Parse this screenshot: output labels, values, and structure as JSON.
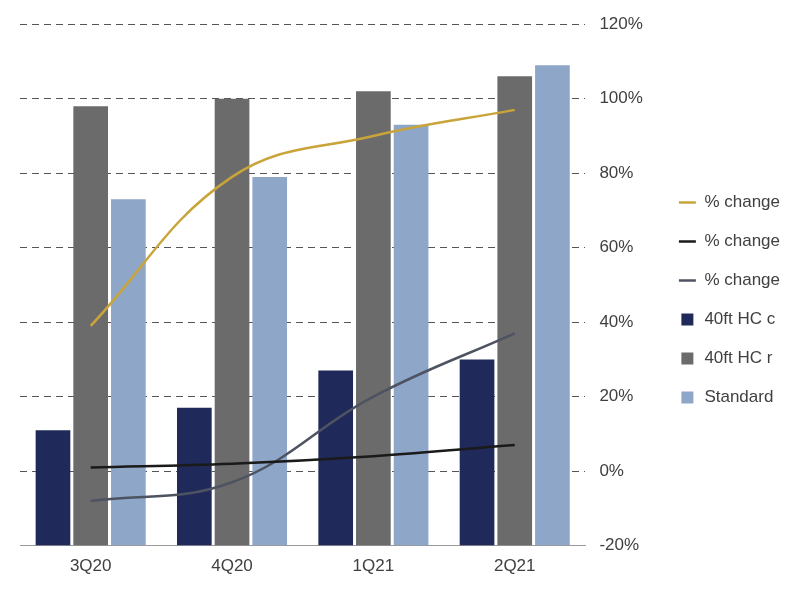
{
  "chart_data": {
    "type": "bar",
    "categories": [
      "3Q20",
      "4Q20",
      "1Q21",
      "2Q21"
    ],
    "series": [
      {
        "name": "40ft HC c",
        "type": "bar",
        "color": "#1f2a5a",
        "values": [
          31,
          37,
          47,
          50
        ]
      },
      {
        "name": "40ft HC r",
        "type": "bar",
        "color": "#6b6b6b",
        "values": [
          118,
          120,
          122,
          126
        ]
      },
      {
        "name": "Standard",
        "type": "bar",
        "color": "#8ea6c8",
        "values": [
          93,
          99,
          113,
          129
        ]
      },
      {
        "name": "% change",
        "type": "line",
        "axis": "y2",
        "color": "#c9a43a",
        "values": [
          39,
          79,
          90,
          97
        ]
      },
      {
        "name": "% change",
        "type": "line",
        "axis": "y2",
        "color": "#1a1a1a",
        "values": [
          1,
          2,
          4,
          7
        ]
      },
      {
        "name": "% change",
        "type": "line",
        "axis": "y2",
        "color": "#4d5361",
        "values": [
          -8,
          -3,
          20,
          37
        ]
      }
    ],
    "ylim": [
      0,
      140
    ],
    "y2lim": [
      -20,
      120
    ],
    "y2ticks": [
      {
        "value": -20,
        "label": "-20%"
      },
      {
        "value": 0,
        "label": "0%"
      },
      {
        "value": 20,
        "label": "20%"
      },
      {
        "value": 40,
        "label": "40%"
      },
      {
        "value": 60,
        "label": "60%"
      },
      {
        "value": 80,
        "label": "80%"
      },
      {
        "value": 100,
        "label": "100%"
      },
      {
        "value": 120,
        "label": "120%"
      }
    ],
    "grid": true,
    "legend": "right"
  }
}
